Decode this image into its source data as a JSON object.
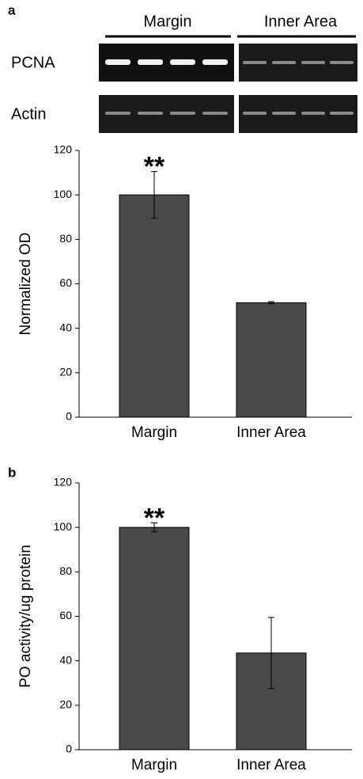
{
  "gel": {
    "panel_label": "a",
    "groups": [
      "Margin",
      "Inner Area"
    ],
    "rows": [
      "PCNA",
      "Actin"
    ]
  },
  "chart_data": [
    {
      "type": "bar",
      "y_label": "Normalized OD",
      "categories": [
        "Margin",
        "Inner Area"
      ],
      "values": [
        100,
        51.5
      ],
      "errors": [
        10.5,
        0.5
      ],
      "significance_labels": [
        "**",
        null
      ],
      "color": "#4a4a4a",
      "ylim": [
        0,
        120
      ],
      "yticks": [
        0,
        20,
        40,
        60,
        80,
        100,
        120
      ]
    },
    {
      "type": "bar",
      "panel_label": "b",
      "y_label": "PO activity/ug protein",
      "categories": [
        "Margin",
        "Inner Area"
      ],
      "values": [
        100,
        43.5
      ],
      "errors": [
        2,
        16
      ],
      "significance_labels": [
        "**",
        null
      ],
      "color": "#4a4a4a",
      "ylim": [
        0,
        120
      ],
      "yticks": [
        0,
        20,
        40,
        60,
        80,
        100,
        120
      ]
    }
  ]
}
